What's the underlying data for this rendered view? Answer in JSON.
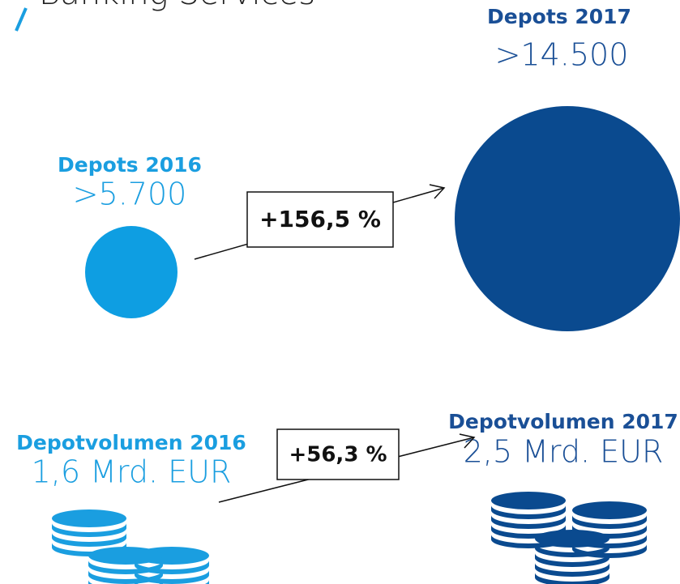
{
  "header": {
    "title": "Banking Services"
  },
  "depots": {
    "before": {
      "label": "Depots 2016",
      "value": ">5.700"
    },
    "after": {
      "label": "Depots 2017",
      "value": ">14.500"
    },
    "change": "+156,5 %"
  },
  "volume": {
    "before": {
      "label": "Depotvolumen 2016",
      "value": "1,6 Mrd. EUR"
    },
    "after": {
      "label": "Depotvolumen 2017",
      "value": "2,5 Mrd. EUR"
    },
    "change": "+56,3 %"
  }
}
